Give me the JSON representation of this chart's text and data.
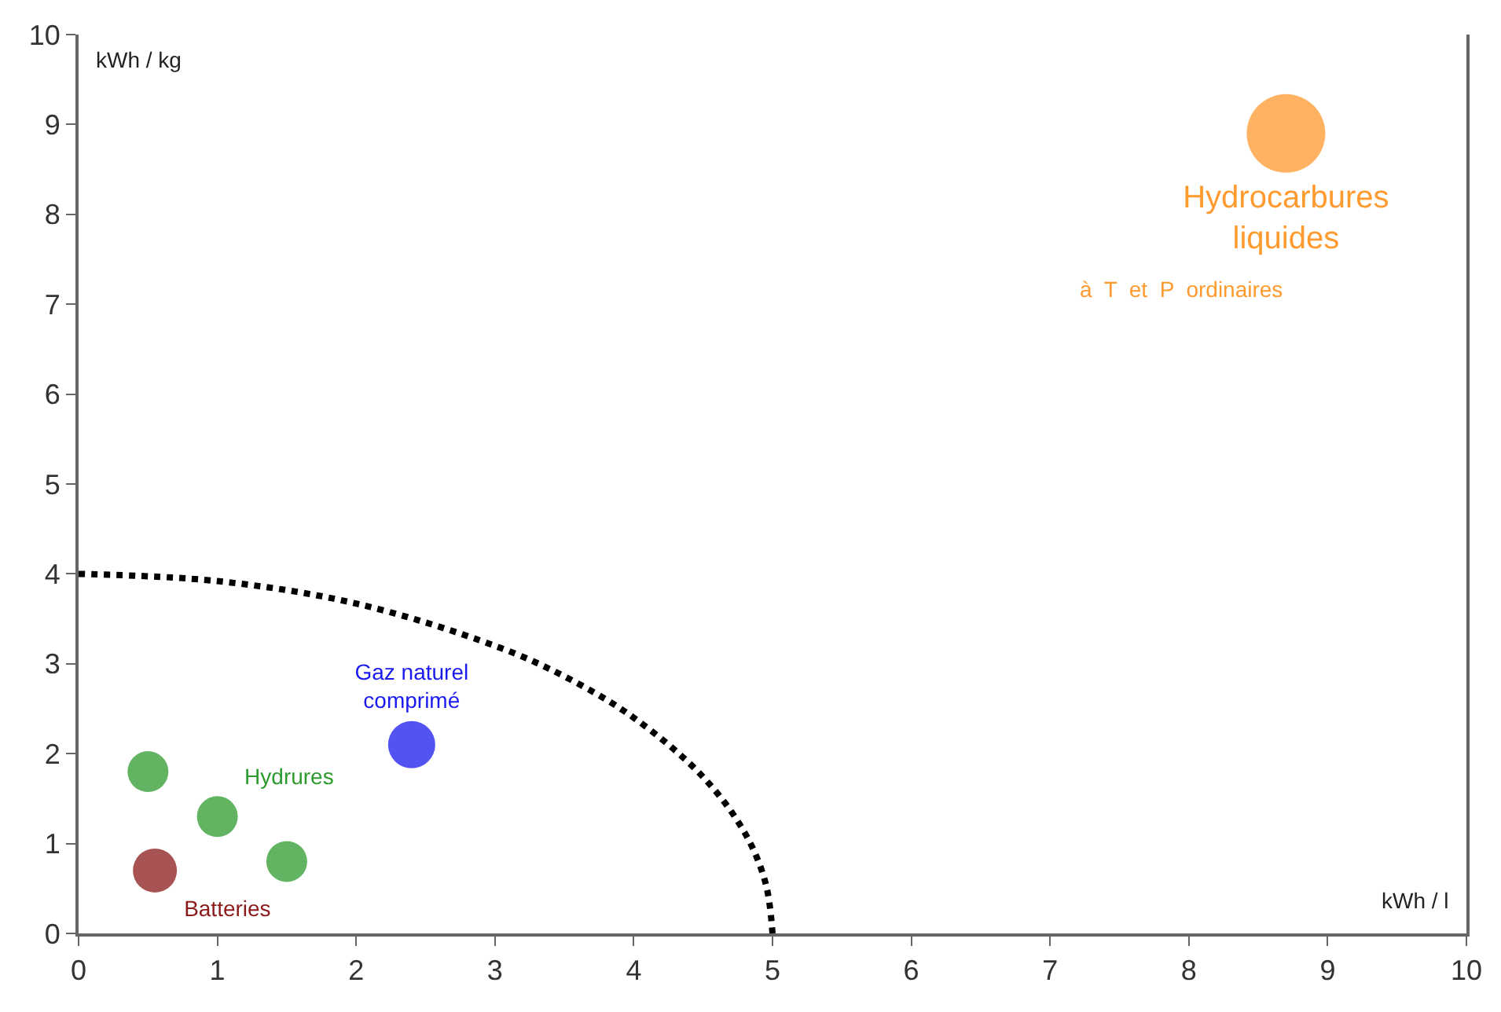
{
  "chart_data": {
    "type": "scatter",
    "xlabel": "kWh / l",
    "ylabel": "kWh / kg",
    "xlim": [
      0,
      10
    ],
    "ylim": [
      0,
      10
    ],
    "xticks": [
      0,
      1,
      2,
      3,
      4,
      5,
      6,
      7,
      8,
      9,
      10
    ],
    "yticks": [
      0,
      1,
      2,
      3,
      4,
      5,
      6,
      7,
      8,
      9,
      10
    ],
    "series": [
      {
        "name": "Batteries",
        "color": "#8b1a1a",
        "x": [
          0.55
        ],
        "values": [
          0.7
        ]
      },
      {
        "name": "Hydrures",
        "color": "#2e9b2e",
        "x": [
          0.5,
          1.0,
          1.5
        ],
        "values": [
          1.8,
          1.3,
          0.8
        ]
      },
      {
        "name": "Gaz naturel\ncomprimé",
        "color": "#1a1aee",
        "x": [
          2.4
        ],
        "values": [
          2.1
        ]
      },
      {
        "name": "Hydrocarbures\nliquides",
        "color": "#ff9a2e",
        "x": [
          8.7
        ],
        "values": [
          8.9
        ]
      },
      {
        "type": "line",
        "color": "#000000",
        "line_style": "dotted",
        "marker": "none",
        "x": [
          0,
          1,
          2,
          3,
          3.5,
          4,
          4.5,
          4.8,
          4.95,
          5
        ],
        "values": [
          4,
          3.92,
          3.67,
          3.2,
          2.86,
          2.4,
          1.74,
          1.12,
          0.56,
          0
        ]
      }
    ],
    "annotations": [
      "à  T  et  P  ordinaires"
    ]
  }
}
